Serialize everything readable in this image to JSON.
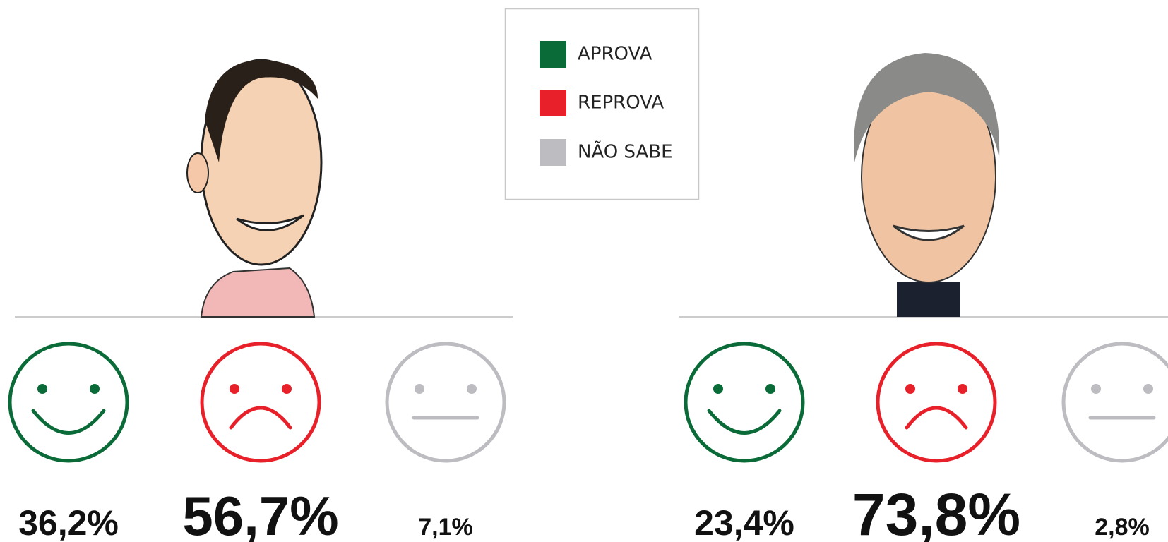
{
  "legend": [
    {
      "label": "APROVA",
      "color": "#0b6b38"
    },
    {
      "label": "REPROVA",
      "color": "#e8202a"
    },
    {
      "label": "NÃO SABE",
      "color": "#bcbcc1"
    }
  ],
  "panels": [
    {
      "values": [
        "36,2%",
        "56,7%",
        "7,1%"
      ]
    },
    {
      "values": [
        "23,4%",
        "73,8%",
        "2,8%"
      ]
    }
  ]
}
